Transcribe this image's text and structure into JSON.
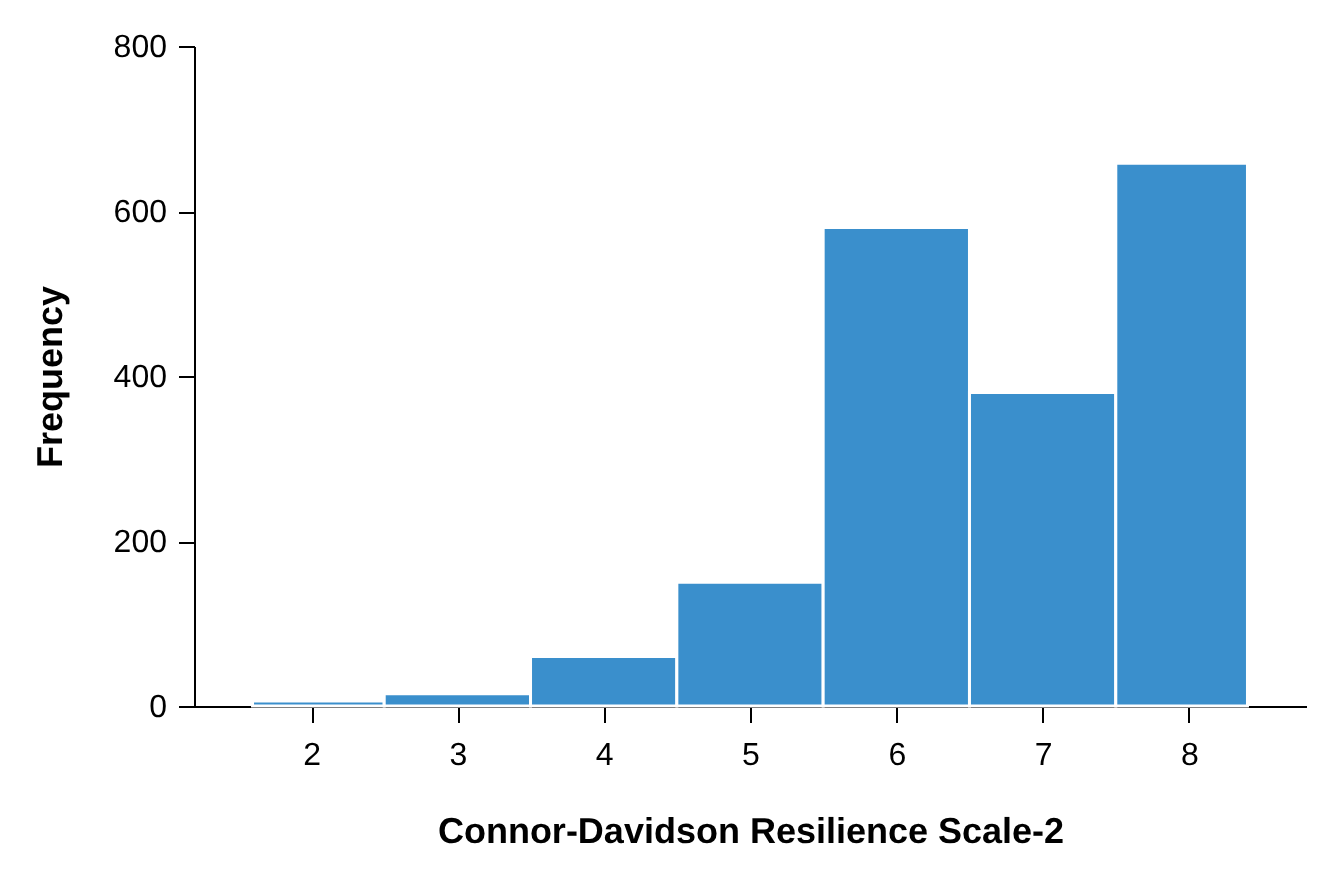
{
  "chart_data": {
    "type": "histogram",
    "xlabel": "Connor-Davidson Resilience Scale-2",
    "ylabel": "Frequency",
    "bins": [
      1.6,
      2.5,
      3.5,
      4.5,
      5.5,
      6.5,
      7.5,
      8.4
    ],
    "values": [
      6,
      15,
      60,
      150,
      580,
      380,
      658
    ],
    "color": "#3a8fcc",
    "xlim": [
      1.2,
      8.8
    ],
    "xticks": [
      2,
      3,
      4,
      5,
      6,
      7,
      8
    ],
    "ylim": [
      0,
      800
    ],
    "yticks": [
      0,
      200,
      400,
      600,
      800
    ],
    "grid": false
  }
}
